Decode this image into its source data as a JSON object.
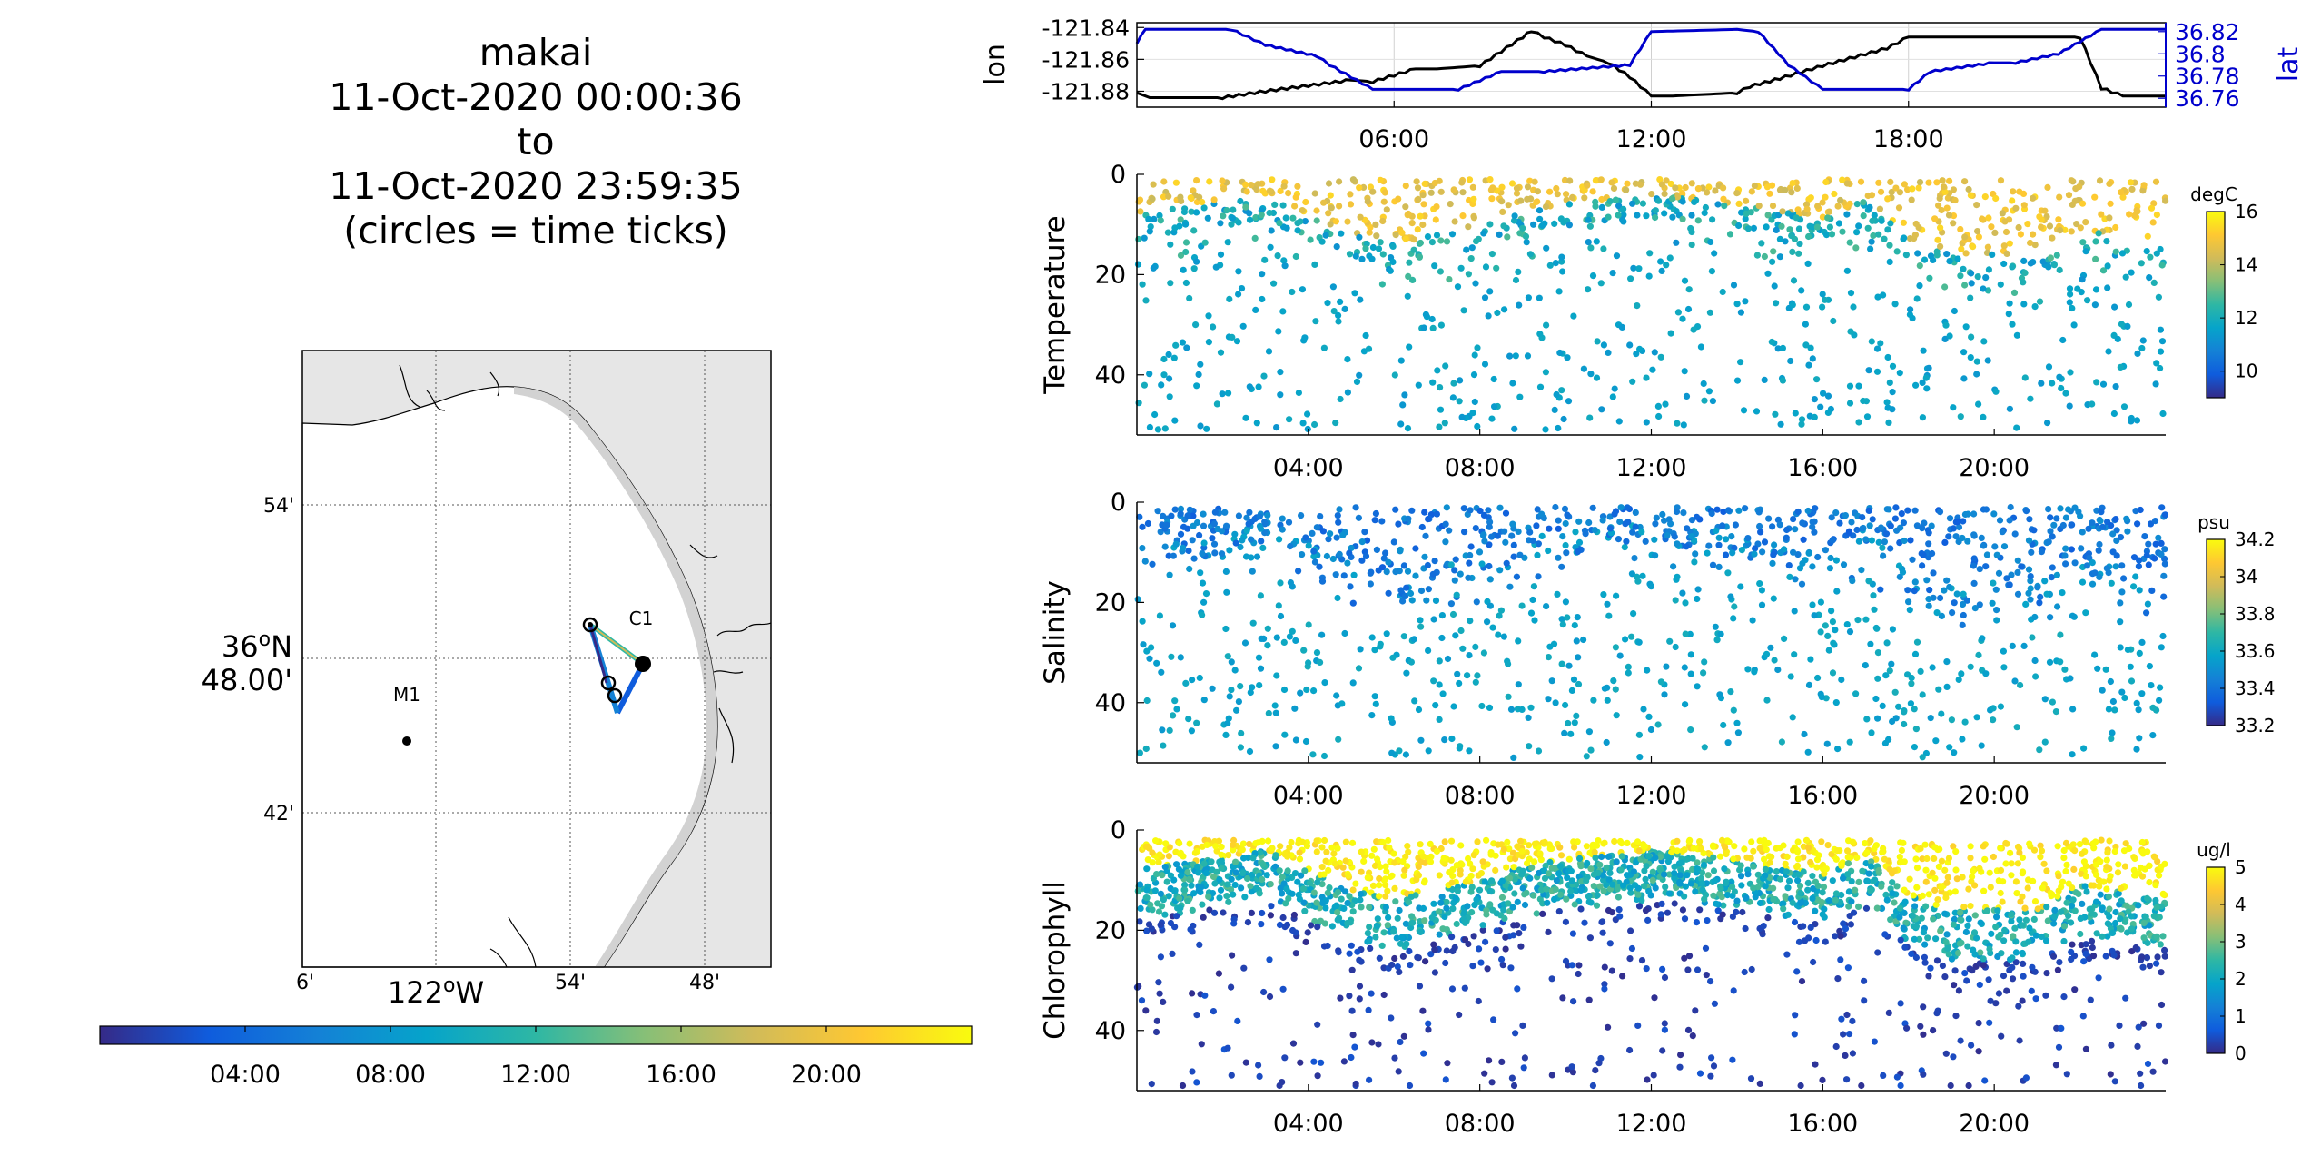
{
  "title": {
    "line1": "makai",
    "line2": "11-Oct-2020 00:00:36",
    "line3": "to",
    "line4": "11-Oct-2020 23:59:35",
    "line5": "(circles = time ticks)"
  },
  "colors": {
    "lon_line": "#000000",
    "lat_line": "#0000cc",
    "lat_axis": "#0000cc",
    "land": "#e6e6e6",
    "grid": "#b0b0b0"
  },
  "colormap": "parula",
  "chart_data": [
    {
      "type": "line",
      "panel": "position",
      "x_ticks": [
        "06:00",
        "12:00",
        "18:00"
      ],
      "x_range_hours": [
        0,
        24
      ],
      "series": [
        {
          "name": "lon",
          "axis": "left",
          "ylim": [
            -121.89,
            -121.837
          ],
          "y_ticks": [
            "-121.84",
            "-121.86",
            "-121.88"
          ],
          "x_hours": [
            0,
            0.3,
            2,
            3,
            5,
            5.5,
            6.5,
            7,
            8,
            9,
            9.2,
            9.5,
            10,
            10.5,
            11,
            11.5,
            12,
            12.5,
            14,
            14.3,
            15,
            16,
            17.5,
            18,
            19,
            20,
            21,
            22,
            22.5,
            23,
            24
          ],
          "y": [
            -121.881,
            -121.884,
            -121.884,
            -121.88,
            -121.873,
            -121.874,
            -121.866,
            -121.866,
            -121.864,
            -121.846,
            -121.842,
            -121.846,
            -121.851,
            -121.858,
            -121.862,
            -121.871,
            -121.883,
            -121.883,
            -121.881,
            -121.877,
            -121.872,
            -121.864,
            -121.853,
            -121.846,
            -121.846,
            -121.846,
            -121.846,
            -121.846,
            -121.878,
            -121.883,
            -121.883
          ]
        },
        {
          "name": "lat",
          "axis": "right",
          "ylim": [
            36.752,
            36.828
          ],
          "y_ticks": [
            "36.82",
            "36.8",
            "36.78",
            "36.76"
          ],
          "x_hours": [
            0,
            0.2,
            2.2,
            3,
            4.2,
            4.5,
            5.5,
            7.5,
            8.5,
            9.5,
            11.5,
            12,
            14,
            14.5,
            15.2,
            16,
            18,
            18.5,
            20,
            20.5,
            21.5,
            22.5,
            24
          ],
          "y": [
            36.81,
            36.822,
            36.822,
            36.808,
            36.798,
            36.79,
            36.768,
            36.768,
            36.784,
            36.784,
            36.79,
            36.82,
            36.822,
            36.82,
            36.79,
            36.768,
            36.768,
            36.784,
            36.792,
            36.792,
            36.8,
            36.822,
            36.822
          ]
        }
      ]
    },
    {
      "type": "scatter",
      "panel": "Temperature",
      "ylabel": "Temperature",
      "colorbar_label": "degC",
      "clim": [
        9,
        16
      ],
      "colorbar_ticks": [
        "16",
        "14",
        "12",
        "10"
      ],
      "y_ticks": [
        "0",
        "20",
        "40"
      ],
      "ylim_reversed": [
        52,
        0
      ],
      "x_ticks": [
        "04:00",
        "08:00",
        "12:00",
        "16:00",
        "20:00"
      ],
      "x_range_hours": [
        0,
        24
      ],
      "value_profile": {
        "surface": 14.8,
        "thermocline": 12.0,
        "deep": 11.6
      },
      "mixed_layer_depth_hours": [
        0,
        3,
        5,
        6,
        8,
        9,
        10,
        12,
        14,
        16,
        17,
        18,
        19,
        21,
        22,
        24
      ],
      "mixed_layer_depth": [
        8,
        4,
        12,
        14,
        10,
        7,
        6,
        4,
        6,
        9,
        5,
        13,
        16,
        16,
        11,
        14
      ]
    },
    {
      "type": "scatter",
      "panel": "Salinity",
      "ylabel": "Salinity",
      "colorbar_label": "psu",
      "clim": [
        33.2,
        34.2
      ],
      "colorbar_ticks": [
        "34.2",
        "34",
        "33.8",
        "33.6",
        "33.4",
        "33.2"
      ],
      "y_ticks": [
        "0",
        "20",
        "40"
      ],
      "ylim_reversed": [
        52,
        0
      ],
      "x_ticks": [
        "04:00",
        "08:00",
        "12:00",
        "16:00",
        "20:00"
      ],
      "x_range_hours": [
        0,
        24
      ],
      "value_profile": {
        "surface": 33.42,
        "thermocline": 33.48,
        "deep": 33.58
      }
    },
    {
      "type": "scatter",
      "panel": "Chlorophyll",
      "ylabel": "Chlorophyll",
      "colorbar_label": "ug/l",
      "clim": [
        0,
        5
      ],
      "colorbar_ticks": [
        "5",
        "4",
        "3",
        "2",
        "1",
        "0"
      ],
      "y_ticks": [
        "0",
        "20",
        "40"
      ],
      "ylim_reversed": [
        52,
        0
      ],
      "x_ticks": [
        "04:00",
        "08:00",
        "12:00",
        "16:00",
        "20:00"
      ],
      "x_range_hours": [
        0,
        24
      ],
      "value_profile": {
        "surface": 4.9,
        "thermocline": 2.2,
        "deep": 0.3
      }
    },
    {
      "type": "map",
      "panel": "track",
      "lat_ticks": [
        "54'",
        "36°N 48.00'",
        "42'"
      ],
      "lon_ticks": [
        "6'",
        "122°W",
        "54'",
        "48'"
      ],
      "lat_tick_center": {
        "deg": "36",
        "sup": "o",
        "hemi": "N",
        "min": "48.00'"
      },
      "lon_tick_center": {
        "deg": "122",
        "sup": "o",
        "hemi": "W"
      },
      "stations": [
        "M1",
        "C1"
      ],
      "track_time_colorbar_ticks": [
        "04:00",
        "08:00",
        "12:00",
        "16:00",
        "20:00"
      ]
    }
  ]
}
